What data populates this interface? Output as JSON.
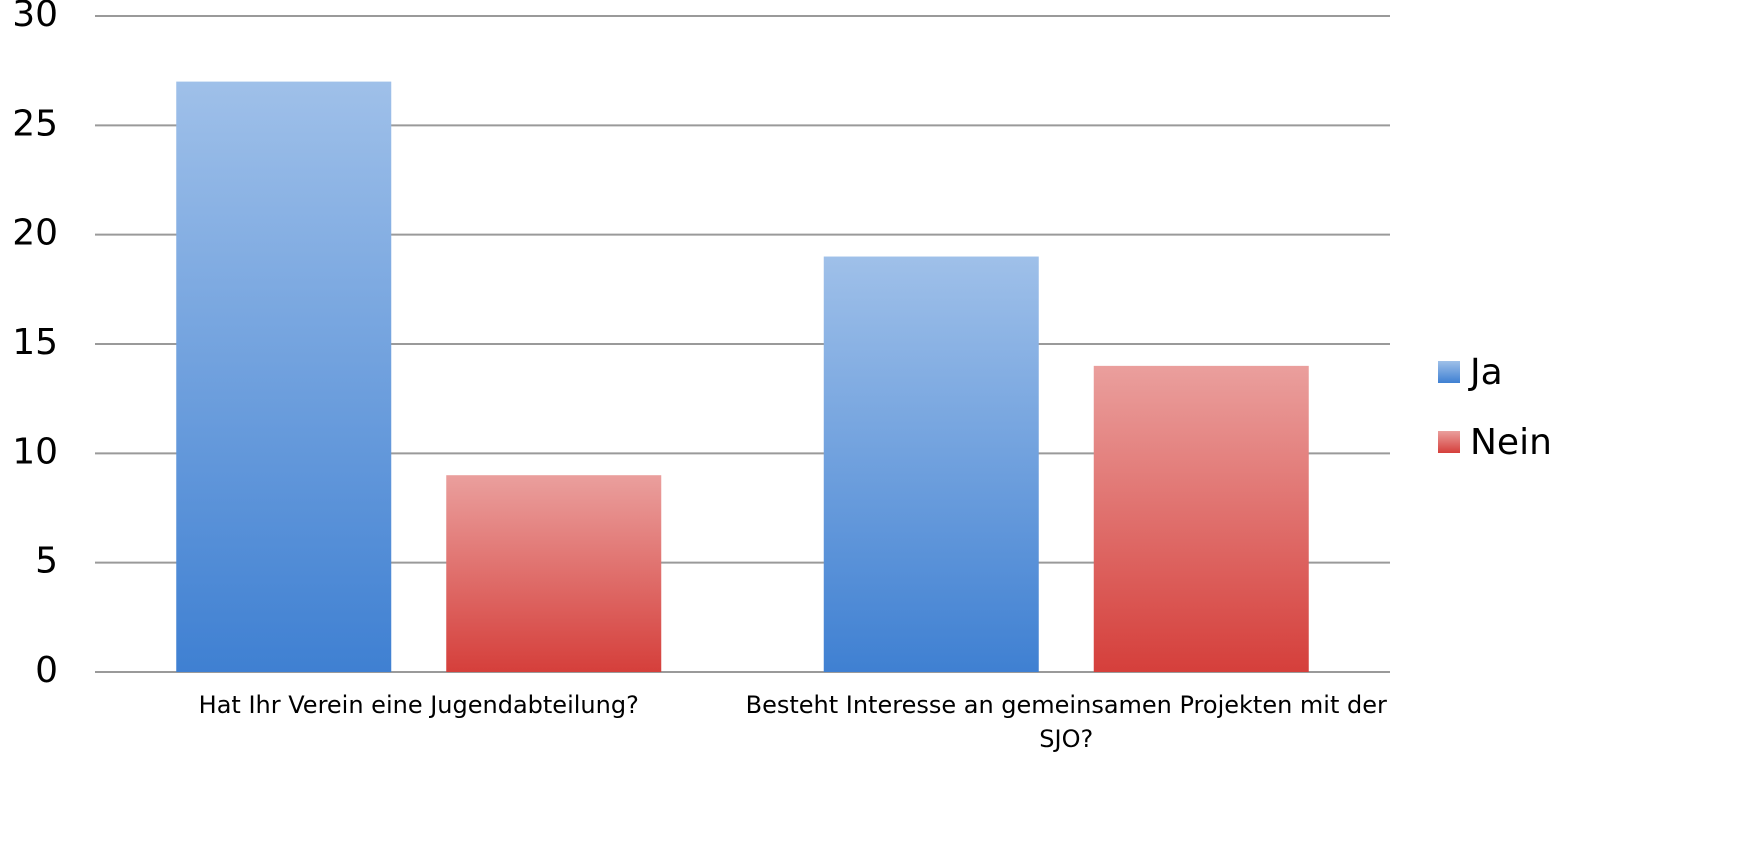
{
  "chart_data": {
    "type": "bar",
    "categories": [
      "Hat Ihr Verein eine Jugendabteilung?",
      "Besteht Interesse an gemeinsamen Projekten mit der SJO?"
    ],
    "series": [
      {
        "name": "Ja",
        "color": "#3f80d2",
        "values": [
          27,
          19
        ]
      },
      {
        "name": "Nein",
        "color": "#d53f3b",
        "values": [
          9,
          14
        ]
      }
    ],
    "ylim": [
      0,
      30
    ],
    "yticks": [
      0,
      5,
      10,
      15,
      20,
      25,
      30
    ],
    "grid": true,
    "legend": "right"
  }
}
